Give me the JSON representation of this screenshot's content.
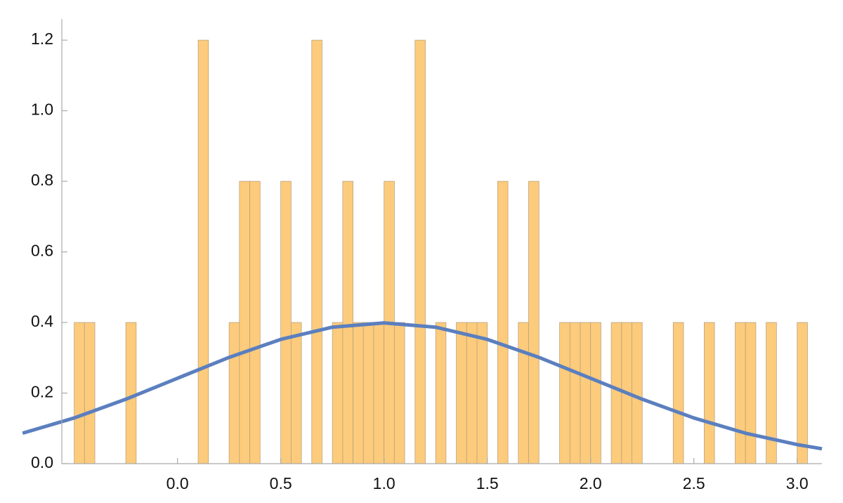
{
  "chart_data": {
    "type": "histogram",
    "bins": [
      -0.5,
      -0.45,
      -0.4,
      -0.35,
      -0.3,
      -0.25,
      -0.2,
      -0.15,
      -0.1,
      -0.05,
      0,
      0.05,
      0.1,
      0.15,
      0.2,
      0.25,
      0.3,
      0.35,
      0.4,
      0.45,
      0.5,
      0.55,
      0.6,
      0.65,
      0.7,
      0.75,
      0.8,
      0.85,
      0.9,
      0.95,
      1,
      1.05,
      1.1,
      1.15,
      1.2,
      1.25,
      1.3,
      1.35,
      1.4,
      1.45,
      1.5,
      1.55,
      1.6,
      1.65,
      1.7,
      1.75,
      1.8,
      1.85,
      1.9,
      1.95,
      2,
      2.05,
      2.1,
      2.15,
      2.2,
      2.25,
      2.3,
      2.35,
      2.4,
      2.45,
      2.5,
      2.55,
      2.6,
      2.65,
      2.7,
      2.75,
      2.8,
      2.85,
      2.9,
      2.95,
      3,
      3.05
    ],
    "values": [
      0.4,
      0.4,
      0,
      0,
      0,
      0.4,
      0,
      0,
      0,
      0,
      0,
      0,
      1.2,
      0,
      0,
      0.4,
      0.8,
      0.8,
      0,
      0,
      0.8,
      0.4,
      0,
      1.2,
      0,
      0.4,
      0.8,
      0.4,
      0.4,
      0.4,
      0.8,
      0.4,
      0,
      1.2,
      0,
      0.4,
      0,
      0.4,
      0.4,
      0.4,
      0,
      0.8,
      0,
      0.4,
      0.8,
      0,
      0,
      0.4,
      0.4,
      0.4,
      0.4,
      0,
      0.4,
      0.4,
      0.4,
      0,
      0,
      0,
      0.4,
      0,
      0,
      0.4,
      0,
      0,
      0.4,
      0.4,
      0,
      0.4,
      0,
      0,
      0.4
    ],
    "color": "#fdcb7c",
    "overlay": {
      "type": "line",
      "color": "#5b7fbf",
      "x": [
        -0.75,
        -0.5,
        -0.25,
        0,
        0.25,
        0.5,
        0.75,
        1,
        1.25,
        1.5,
        1.75,
        2,
        2.25,
        2.5,
        2.75,
        3,
        3.12
      ],
      "values": [
        0.0863,
        0.1295,
        0.1826,
        0.242,
        0.3011,
        0.3521,
        0.3867,
        0.3989,
        0.3867,
        0.3521,
        0.3011,
        0.242,
        0.1826,
        0.1295,
        0.0863,
        0.054,
        0.0422
      ]
    },
    "xlim": [
      -0.56,
      3.12
    ],
    "ylim": [
      0,
      1.26
    ],
    "xticks": [
      {
        "value": 0,
        "label": "0.0"
      },
      0.5,
      {
        "value": 1,
        "label": "1.0"
      },
      1.5,
      {
        "value": 2,
        "label": "2.0"
      },
      2.5,
      {
        "value": 3,
        "label": "3.0"
      }
    ],
    "yticks": [
      {
        "value": 0,
        "label": "0.0"
      },
      0.2,
      0.4,
      0.6,
      0.8,
      {
        "value": 1,
        "label": "1.0"
      },
      1.2
    ]
  }
}
